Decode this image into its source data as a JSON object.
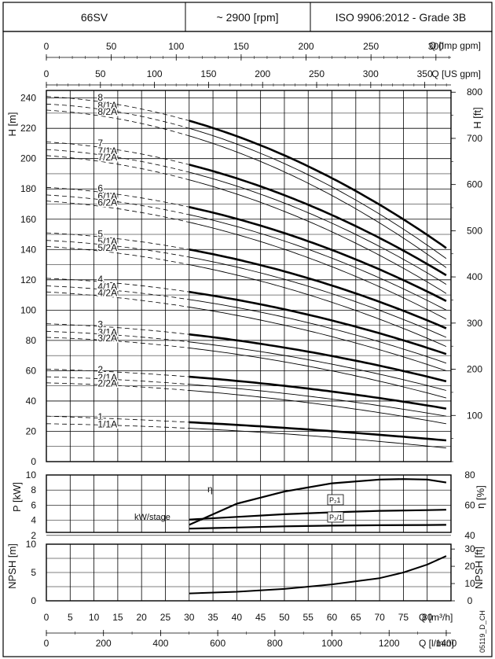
{
  "header": {
    "model": "66SV",
    "speed": "~ 2900 [rpm]",
    "standard": "ISO 9906:2012 - Grade 3B"
  },
  "axes": {
    "imp_gpm": {
      "label": "Q [Imp gpm]",
      "ticks": [
        0,
        50,
        100,
        150,
        200,
        250,
        300
      ],
      "per_m3h": 3.666
    },
    "us_gpm": {
      "label": "Q [US gpm]",
      "ticks": [
        0,
        50,
        100,
        150,
        200,
        250,
        300,
        350
      ],
      "per_m3h": 4.403
    },
    "q_m3h": {
      "label": "Q [m³/h]",
      "ticks": [
        0,
        5,
        10,
        15,
        20,
        25,
        30,
        35,
        40,
        45,
        50,
        55,
        60,
        65,
        70,
        75,
        80
      ],
      "range": [
        0,
        85
      ]
    },
    "q_lmin": {
      "label": "Q [l/min]",
      "ticks": [
        0,
        200,
        400,
        600,
        800,
        1000,
        1200,
        1400
      ]
    },
    "h_m": {
      "label": "H [m]",
      "range": [
        0,
        245
      ],
      "ticks": [
        0,
        20,
        40,
        60,
        80,
        100,
        120,
        140,
        160,
        180,
        200,
        220,
        240
      ]
    },
    "h_ft": {
      "label": "H [ft]",
      "ticks": [
        100,
        200,
        300,
        400,
        500,
        600,
        700,
        800
      ]
    },
    "p_kw": {
      "label": "P [kW]",
      "range": [
        2.4,
        10
      ],
      "ticks": [
        2,
        4,
        6,
        8,
        10
      ]
    },
    "eta": {
      "label": "η [%]",
      "ticks": [
        40,
        60,
        80
      ]
    },
    "npsh_m": {
      "label": "NPSH [m]",
      "range": [
        0,
        10
      ],
      "ticks": [
        0,
        5,
        10
      ]
    },
    "npsh_ft": {
      "label": "NPSH [ft]",
      "ticks": [
        0,
        10,
        20,
        30
      ]
    }
  },
  "chart_data": [
    {
      "type": "line",
      "title": "Head curves",
      "xlabel": "Q [m³/h]",
      "ylabel": "H [m]",
      "op_range_m3h": [
        30,
        84
      ],
      "series": [
        {
          "name": "8",
          "h0": 241,
          "hmin": 225,
          "hmax": 141,
          "thick": true
        },
        {
          "name": "8/1A",
          "h0": 236,
          "hmin": 220,
          "hmax": 134,
          "thick": false
        },
        {
          "name": "8/2A",
          "h0": 232,
          "hmin": 215,
          "hmax": 128,
          "thick": false
        },
        {
          "name": "7",
          "h0": 211,
          "hmin": 196,
          "hmax": 123,
          "thick": true
        },
        {
          "name": "7/1A",
          "h0": 206,
          "hmin": 191,
          "hmax": 117,
          "thick": false
        },
        {
          "name": "7/2A",
          "h0": 202,
          "hmin": 186,
          "hmax": 111,
          "thick": false
        },
        {
          "name": "6",
          "h0": 181,
          "hmin": 168,
          "hmax": 106,
          "thick": true
        },
        {
          "name": "6/1A",
          "h0": 176,
          "hmin": 163,
          "hmax": 100,
          "thick": false
        },
        {
          "name": "6/2A",
          "h0": 172,
          "hmin": 158,
          "hmax": 94,
          "thick": false
        },
        {
          "name": "5",
          "h0": 151,
          "hmin": 140,
          "hmax": 88,
          "thick": true
        },
        {
          "name": "5/1A",
          "h0": 146,
          "hmin": 135,
          "hmax": 82,
          "thick": false
        },
        {
          "name": "5/2A",
          "h0": 142,
          "hmin": 130,
          "hmax": 76,
          "thick": false
        },
        {
          "name": "4",
          "h0": 121,
          "hmin": 112,
          "hmax": 71,
          "thick": true
        },
        {
          "name": "4/1A",
          "h0": 116,
          "hmin": 107,
          "hmax": 65,
          "thick": false
        },
        {
          "name": "4/2A",
          "h0": 112,
          "hmin": 102,
          "hmax": 60,
          "thick": false
        },
        {
          "name": "3",
          "h0": 91,
          "hmin": 84,
          "hmax": 53,
          "thick": true
        },
        {
          "name": "3/1A",
          "h0": 86,
          "hmin": 79,
          "hmax": 47,
          "thick": false
        },
        {
          "name": "3/2A",
          "h0": 82,
          "hmin": 75,
          "hmax": 42,
          "thick": false
        },
        {
          "name": "2",
          "h0": 61,
          "hmin": 56,
          "hmax": 35,
          "thick": true
        },
        {
          "name": "2/1A",
          "h0": 56,
          "hmin": 51,
          "hmax": 30,
          "thick": false
        },
        {
          "name": "2/2A",
          "h0": 52,
          "hmin": 47,
          "hmax": 25,
          "thick": false
        },
        {
          "name": "1",
          "h0": 30,
          "hmin": 26,
          "hmax": 14,
          "thick": true
        },
        {
          "name": "1/1A",
          "h0": 25,
          "hmin": 22,
          "hmax": 9,
          "thick": false
        }
      ]
    },
    {
      "type": "line",
      "title": "Power and efficiency",
      "xlabel": "Q [m³/h]",
      "ylabel": "P [kW]",
      "y2label": "η [%]",
      "series": [
        {
          "name": "η",
          "axis": "eta_pct",
          "x": [
            30,
            40,
            50,
            60,
            70,
            75,
            80,
            84
          ],
          "y": [
            47,
            61,
            69,
            74.5,
            77,
            77.3,
            77,
            75
          ]
        },
        {
          "name": "P2 1",
          "axis": "kw",
          "x": [
            30,
            40,
            50,
            60,
            70,
            80,
            84
          ],
          "y": [
            4.1,
            4.45,
            4.8,
            5.05,
            5.25,
            5.35,
            5.4
          ]
        },
        {
          "name": "P2 1A",
          "axis": "kw",
          "x": [
            30,
            40,
            50,
            60,
            70,
            80,
            84
          ],
          "y": [
            2.9,
            3.05,
            3.2,
            3.3,
            3.35,
            3.38,
            3.4
          ]
        }
      ],
      "labels": {
        "eta": "η",
        "p2_1": "P₂1",
        "p2_1a": "P₂/1",
        "stage": "kW/stage"
      }
    },
    {
      "type": "line",
      "title": "NPSH",
      "xlabel": "Q [m³/h]",
      "ylabel": "NPSH [m]",
      "series": [
        {
          "name": "NPSH",
          "x": [
            30,
            40,
            50,
            60,
            70,
            75,
            80,
            84
          ],
          "y": [
            1.3,
            1.6,
            2.1,
            2.9,
            4.0,
            5.0,
            6.4,
            7.9
          ]
        }
      ]
    }
  ],
  "footer_code": "05119_D_CH"
}
